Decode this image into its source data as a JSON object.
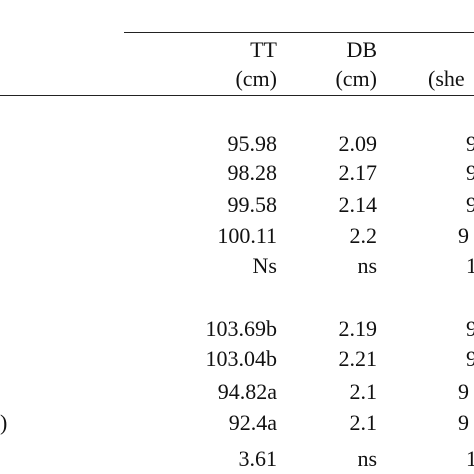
{
  "table": {
    "header": {
      "col1": {
        "name": "TT",
        "unit": "(cm)"
      },
      "col2": {
        "name": "DB",
        "unit": "(cm)"
      },
      "col3": {
        "name": "",
        "unit": "(she"
      }
    },
    "rows": [
      {
        "tt": "95.98",
        "db": "2.09",
        "c3": "9"
      },
      {
        "tt": "98.28",
        "db": "2.17",
        "c3": "9"
      },
      {
        "tt": "99.58",
        "db": "2.14",
        "c3": "9"
      },
      {
        "tt": "100.11",
        "db": "2.2",
        "c3": "9"
      },
      {
        "tt": "Ns",
        "db": "ns",
        "c3": "1"
      },
      {
        "tt": "103.69b",
        "db": "2.19",
        "c3": "9"
      },
      {
        "tt": "103.04b",
        "db": "2.21",
        "c3": "9"
      },
      {
        "tt": "94.82a",
        "db": "2.1",
        "c3": "9"
      },
      {
        "tt": "92.4a",
        "db": "2.1",
        "c3": "9"
      },
      {
        "tt": "3.61",
        "db": "ns",
        "c3": "1"
      }
    ],
    "left_fragment": ")"
  }
}
